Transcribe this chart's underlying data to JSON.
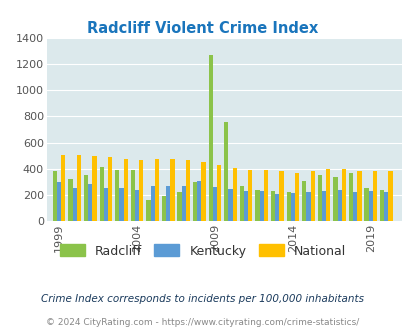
{
  "title": "Radcliff Violent Crime Index",
  "years": [
    1999,
    2000,
    2001,
    2002,
    2003,
    2004,
    2005,
    2006,
    2007,
    2008,
    2009,
    2010,
    2011,
    2012,
    2013,
    2014,
    2015,
    2016,
    2017,
    2018,
    2019,
    2020
  ],
  "radcliff": [
    380,
    320,
    355,
    415,
    390,
    390,
    160,
    195,
    220,
    300,
    1270,
    760,
    270,
    235,
    230,
    225,
    305,
    350,
    335,
    370,
    250,
    240
  ],
  "kentucky": [
    300,
    255,
    280,
    250,
    250,
    240,
    265,
    265,
    265,
    305,
    260,
    245,
    230,
    230,
    205,
    215,
    220,
    230,
    240,
    220,
    230,
    225
  ],
  "national": [
    505,
    505,
    500,
    490,
    475,
    465,
    475,
    475,
    470,
    455,
    430,
    405,
    390,
    390,
    385,
    370,
    385,
    395,
    395,
    385,
    380,
    380
  ],
  "radcliff_color": "#8bc34a",
  "kentucky_color": "#5b9bd5",
  "national_color": "#ffc000",
  "bg_color": "#dce9ec",
  "grid_color": "#ffffff",
  "title_color": "#1a75bc",
  "tick_color": "#555555",
  "legend_labels": [
    "Radcliff",
    "Kentucky",
    "National"
  ],
  "legend_label_color": "#333333",
  "footnote1": "Crime Index corresponds to incidents per 100,000 inhabitants",
  "footnote2": "© 2024 CityRating.com - https://www.cityrating.com/crime-statistics/",
  "footnote1_color": "#1a3a5c",
  "footnote2_color": "#888888",
  "ylim": [
    0,
    1400
  ],
  "yticks": [
    0,
    200,
    400,
    600,
    800,
    1000,
    1200,
    1400
  ],
  "xticks": [
    1999,
    2004,
    2009,
    2014,
    2019
  ],
  "bar_width": 0.27
}
